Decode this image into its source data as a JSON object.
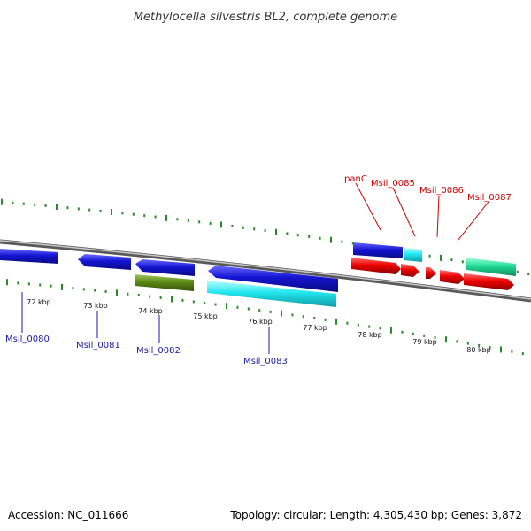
{
  "title": "Methylocella silvestris BL2, complete genome",
  "footer": {
    "accession": "Accession: NC_011666",
    "summary": "Topology: circular; Length: 4,305,430 bp; Genes: 3,872"
  },
  "colors": {
    "backbone": "#8c8c8c",
    "tick": "#2a8a2a",
    "label_forward": "#cc0000",
    "label_reverse": "#1a1aa8",
    "blue": "#1414d2",
    "red": "#ee0000",
    "cyan": "#22e6ee",
    "olive": "#5c8a14",
    "teal": "#22dd99"
  },
  "scale_labels": [
    "72 kbp",
    "73 kbp",
    "74 kbp",
    "75 kbp",
    "76 kbp",
    "77 kbp",
    "78 kbp",
    "79 kbp",
    "80 kbp"
  ],
  "gene_labels": [
    {
      "name": "Msil_0080",
      "strand": "reverse"
    },
    {
      "name": "Msil_0081",
      "strand": "reverse"
    },
    {
      "name": "Msil_0082",
      "strand": "reverse"
    },
    {
      "name": "Msil_0083",
      "strand": "reverse"
    },
    {
      "name": "panC",
      "strand": "forward"
    },
    {
      "name": "Msil_0085",
      "strand": "forward"
    },
    {
      "name": "Msil_0086",
      "strand": "forward"
    },
    {
      "name": "Msil_0087",
      "strand": "forward"
    }
  ]
}
